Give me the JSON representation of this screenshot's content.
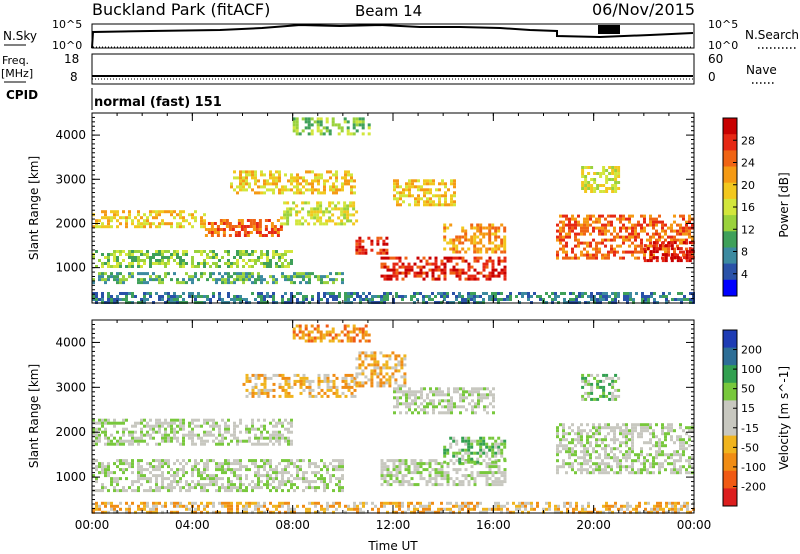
{
  "header": {
    "site": "Buckland Park (fitACF)",
    "beam": "Beam 14",
    "date": "06/Nov/2015"
  },
  "status_panels": {
    "nsky": {
      "label": "N.Sky",
      "left_ticks": [
        "10^5",
        "10^0"
      ]
    },
    "nsearch": {
      "label": "N.Search",
      "right_ticks": [
        "10^5",
        "10^0"
      ]
    },
    "freq": {
      "label_line1": "Freq.",
      "label_line2": "[MHz]",
      "left_ticks": [
        "18",
        "8"
      ]
    },
    "nave": {
      "label": "Nave",
      "right_ticks": [
        "60",
        "0"
      ]
    },
    "cpid": {
      "label": "CPID",
      "mode_text": "normal (fast) 151"
    }
  },
  "chart_data": [
    {
      "type": "heatmap",
      "title": "",
      "quantity": "Power",
      "ylabel": "Slant Range [km]",
      "xlabel": "",
      "ylim": [
        200,
        4500
      ],
      "yticks": [
        1000,
        2000,
        3000,
        4000
      ],
      "xlim": [
        0,
        24
      ],
      "xtick_labels": [
        "00:00",
        "04:00",
        "08:00",
        "12:00",
        "16:00",
        "20:00",
        "00:00"
      ],
      "colorbar": {
        "label": "Power [dB]",
        "ticks": [
          "4",
          "8",
          "12",
          "16",
          "20",
          "24",
          "28"
        ],
        "colors": [
          "#0000ff",
          "#2a52a8",
          "#3c8aa0",
          "#3fa05a",
          "#9ad23c",
          "#d2e63c",
          "#f2c81e",
          "#f59a14",
          "#f06414",
          "#e62814",
          "#c80000"
        ]
      },
      "echo_regions": [
        {
          "t_start": 0.0,
          "t_end": 4.5,
          "r_start": 1900,
          "r_end": 2300,
          "level": 6
        },
        {
          "t_start": 4.5,
          "t_end": 7.5,
          "r_start": 1700,
          "r_end": 2100,
          "level": 8
        },
        {
          "t_start": 0.0,
          "t_end": 8.0,
          "r_start": 1050,
          "r_end": 1400,
          "level": 4
        },
        {
          "t_start": 0.0,
          "t_end": 10.0,
          "r_start": 650,
          "r_end": 900,
          "level": 3
        },
        {
          "t_start": 7.5,
          "t_end": 10.5,
          "r_start": 2000,
          "r_end": 2500,
          "level": 5
        },
        {
          "t_start": 10.5,
          "t_end": 11.8,
          "r_start": 1300,
          "r_end": 1700,
          "level": 9
        },
        {
          "t_start": 11.5,
          "t_end": 16.5,
          "r_start": 750,
          "r_end": 1250,
          "level": 9
        },
        {
          "t_start": 14.0,
          "t_end": 16.5,
          "r_start": 1350,
          "r_end": 2000,
          "level": 7
        },
        {
          "t_start": 5.5,
          "t_end": 10.5,
          "r_start": 2700,
          "r_end": 3200,
          "level": 6
        },
        {
          "t_start": 12.0,
          "t_end": 14.5,
          "r_start": 2400,
          "r_end": 3000,
          "level": 6
        },
        {
          "t_start": 8.0,
          "t_end": 11.0,
          "r_start": 4000,
          "r_end": 4400,
          "level": 4
        },
        {
          "t_start": 18.5,
          "t_end": 24.0,
          "r_start": 1200,
          "r_end": 2200,
          "level": 8
        },
        {
          "t_start": 22.0,
          "t_end": 24.0,
          "r_start": 1150,
          "r_end": 1600,
          "level": 10
        },
        {
          "t_start": 19.5,
          "t_end": 21.0,
          "r_start": 2700,
          "r_end": 3300,
          "level": 5
        },
        {
          "t_start": 0.0,
          "t_end": 24.0,
          "r_start": 200,
          "r_end": 450,
          "level": 2
        }
      ]
    },
    {
      "type": "heatmap",
      "title": "",
      "quantity": "Velocity",
      "ylabel": "Slant Range [km]",
      "xlabel": "Time UT",
      "ylim": [
        200,
        4500
      ],
      "yticks": [
        1000,
        2000,
        3000,
        4000
      ],
      "xlim": [
        0,
        24
      ],
      "xtick_labels": [
        "00:00",
        "04:00",
        "08:00",
        "12:00",
        "16:00",
        "20:00",
        "00:00"
      ],
      "colorbar": {
        "label": "Velocity [m s^-1]",
        "ticks": [
          "200",
          "100",
          "50",
          "15",
          "-15",
          "-50",
          "-100",
          "-200"
        ],
        "colors": [
          "#1e3cb4",
          "#2d6e96",
          "#32a050",
          "#78c83c",
          "#c8c8c0",
          "#c8c8c0",
          "#f0b41e",
          "#f08c14",
          "#f05a14",
          "#dc1e1e"
        ]
      },
      "echo_regions": [
        {
          "t_start": 0.0,
          "t_end": 8.0,
          "r_start": 1700,
          "r_end": 2300,
          "level": 4
        },
        {
          "t_start": 0.0,
          "t_end": 10.0,
          "r_start": 700,
          "r_end": 1400,
          "level": 4
        },
        {
          "t_start": 6.0,
          "t_end": 10.5,
          "r_start": 2800,
          "r_end": 3300,
          "level": 6
        },
        {
          "t_start": 10.5,
          "t_end": 12.5,
          "r_start": 3000,
          "r_end": 3800,
          "level": 6
        },
        {
          "t_start": 11.5,
          "t_end": 16.5,
          "r_start": 800,
          "r_end": 1400,
          "level": 4
        },
        {
          "t_start": 14.0,
          "t_end": 16.5,
          "r_start": 1300,
          "r_end": 1900,
          "level": 3
        },
        {
          "t_start": 12.0,
          "t_end": 16.0,
          "r_start": 2400,
          "r_end": 3000,
          "level": 4
        },
        {
          "t_start": 8.0,
          "t_end": 11.0,
          "r_start": 4000,
          "r_end": 4400,
          "level": 7
        },
        {
          "t_start": 18.5,
          "t_end": 24.0,
          "r_start": 1100,
          "r_end": 2200,
          "level": 4
        },
        {
          "t_start": 19.5,
          "t_end": 21.0,
          "r_start": 2700,
          "r_end": 3300,
          "level": 3
        },
        {
          "t_start": 0.0,
          "t_end": 24.0,
          "r_start": 200,
          "r_end": 450,
          "level": 6
        }
      ]
    }
  ]
}
